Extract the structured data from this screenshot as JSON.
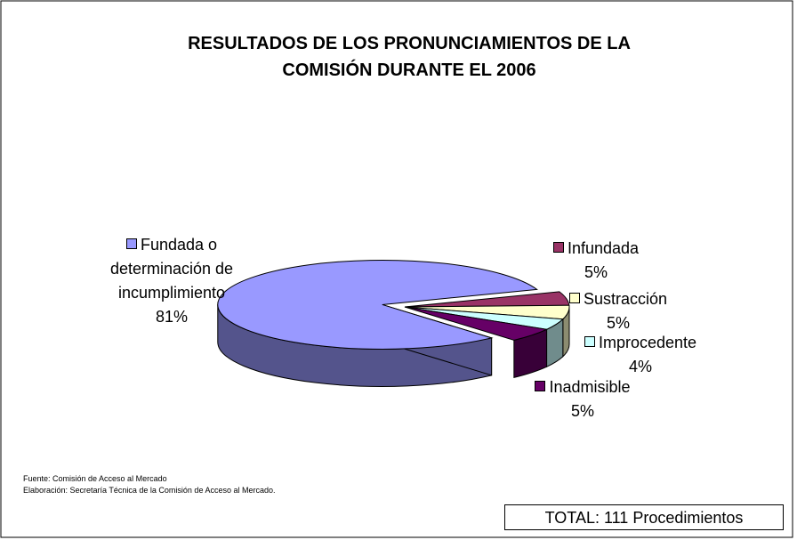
{
  "chart_data": {
    "type": "pie",
    "title": "RESULTADOS DE LOS PRONUNCIAMIENTOS DE LA COMISIÓN DURANTE EL 2006",
    "categories": [
      "Fundada o determinación de incumplimiento",
      "Infundada",
      "Sustracción",
      "Improcedente",
      "Inadmisible"
    ],
    "values": [
      81,
      5,
      5,
      4,
      5
    ],
    "value_labels": [
      "81%",
      "5%",
      "5%",
      "4%",
      "5%"
    ],
    "colors": [
      "#9999ff",
      "#993366",
      "#ffffcc",
      "#ccffff",
      "#660066"
    ],
    "source": "Fuente: Comisión de Acceso al Mercado",
    "credit": "Elaboración: Secretaría Técnica de la Comisión de Acceso al Mercado.",
    "total": "TOTAL: 111  Procedimientos"
  }
}
